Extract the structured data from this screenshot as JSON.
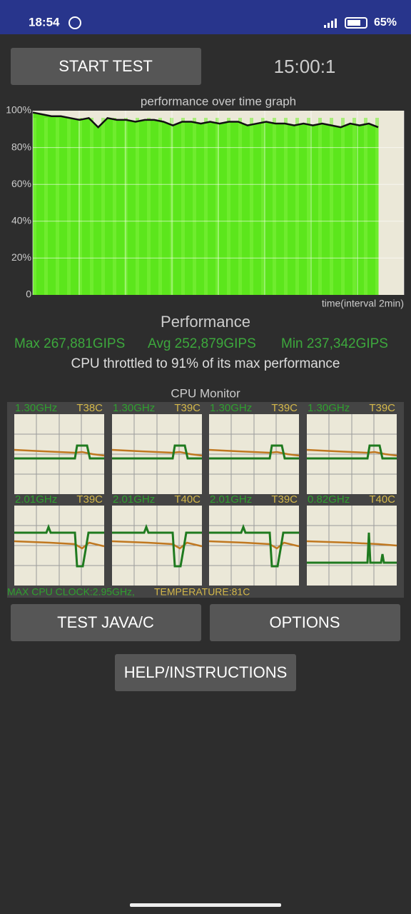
{
  "status_bar": {
    "time": "18:54",
    "battery": "65%"
  },
  "start_button": "START TEST",
  "timer": "15:00:1",
  "performance_graph": {
    "title": "performance over time graph",
    "y_labels": [
      "100%",
      "80%",
      "60%",
      "40%",
      "20%",
      "0"
    ],
    "x_label": "time(interval 2min)",
    "values": [
      99,
      98,
      97,
      97,
      96,
      95,
      96,
      91,
      96,
      95,
      95,
      94,
      95,
      95,
      94,
      92,
      94,
      94,
      93,
      94,
      93,
      94,
      94,
      92,
      93,
      94,
      93,
      93,
      92,
      93,
      92,
      93,
      92,
      91,
      93,
      92,
      93,
      91
    ]
  },
  "performance": {
    "title": "Performance",
    "max": "Max 267,881GIPS",
    "avg": "Avg 252,879GIPS",
    "min": "Min 237,342GIPS",
    "throttle": "CPU throttled to 91% of its max performance"
  },
  "cpu_monitor": {
    "title": "CPU Monitor",
    "cores": [
      {
        "freq": "1.30GHz",
        "temp": "T38C"
      },
      {
        "freq": "1.30GHz",
        "temp": "T39C"
      },
      {
        "freq": "1.30GHz",
        "temp": "T39C"
      },
      {
        "freq": "1.30GHz",
        "temp": "T39C"
      },
      {
        "freq": "2.01GHz",
        "temp": "T39C"
      },
      {
        "freq": "2.01GHz",
        "temp": "T40C"
      },
      {
        "freq": "2.01GHz",
        "temp": "T39C"
      },
      {
        "freq": "0.82GHz",
        "temp": "T40C"
      }
    ],
    "max_clock": "MAX CPU CLOCK:2.95GHz,",
    "temperature": "TEMPERATURE:81C"
  },
  "buttons": {
    "test_java": "TEST JAVA/C",
    "options": "OPTIONS",
    "help": "HELP/INSTRUCTIONS"
  }
}
